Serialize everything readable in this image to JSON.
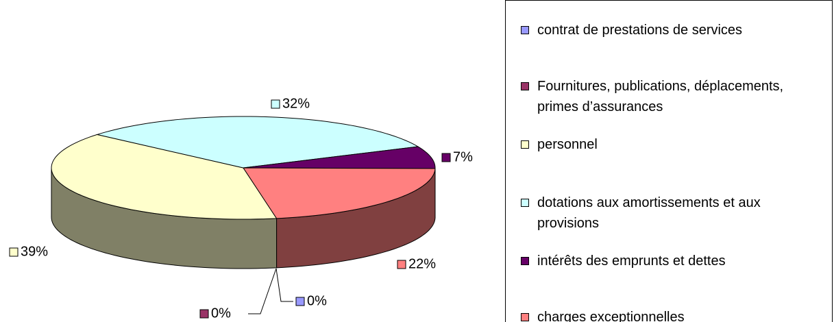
{
  "chart_data": {
    "type": "pie3d",
    "categories": [
      "contrat de prestations de services",
      "Fournitures, publications, déplacements, primes d’assurances",
      "personnel",
      "dotations aux amortissements et aux provisions",
      "intérêts des emprunts et dettes",
      "charges exceptionnelles"
    ],
    "values": [
      0,
      0,
      39,
      32,
      7,
      22
    ],
    "value_labels": [
      "0%",
      "0%",
      "39%",
      "32%",
      "7%",
      "22%"
    ],
    "colors": [
      "#9999ff",
      "#993366",
      "#ffffcc",
      "#ccffff",
      "#660066",
      "#ff8080"
    ],
    "legend": "right"
  }
}
